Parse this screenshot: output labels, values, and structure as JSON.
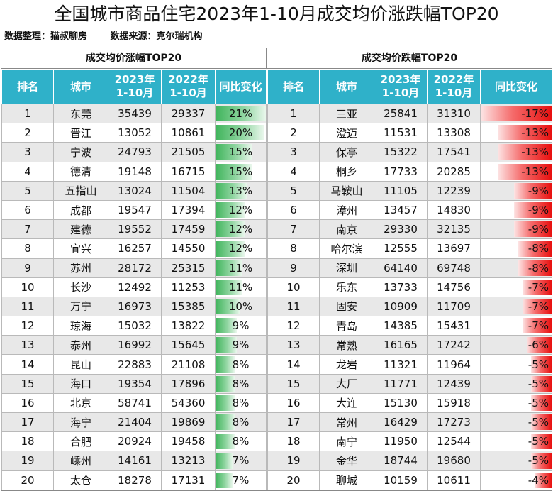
{
  "title": "全国城市商品住宅2023年1-10月成交均价涨跌幅TOP20",
  "subtitle": {
    "compiled_by": "数据整理：猫叔聊房",
    "source": "数据来源：克尔瑞机构"
  },
  "headers": {
    "rank": "排名",
    "city": "城市",
    "y2023": "2023年\n1-10月",
    "y2022": "2022年\n1-10月",
    "change": "同比变化"
  },
  "colors": {
    "header_bg": "#2fb1c9",
    "gain_bar": "#3fb45b",
    "loss_bar": "#e8100f"
  },
  "chart_data": [
    {
      "type": "table",
      "title": "成交均价涨幅TOP20",
      "max_abs_change": 21,
      "rows": [
        {
          "rank": "1",
          "city": "东莞",
          "price_2023": "35439",
          "price_2022": "29337",
          "change": "21%",
          "value": 21
        },
        {
          "rank": "2",
          "city": "晋江",
          "price_2023": "13052",
          "price_2022": "10861",
          "change": "20%",
          "value": 20
        },
        {
          "rank": "3",
          "city": "宁波",
          "price_2023": "24793",
          "price_2022": "21505",
          "change": "15%",
          "value": 15
        },
        {
          "rank": "4",
          "city": "德清",
          "price_2023": "19148",
          "price_2022": "16715",
          "change": "15%",
          "value": 15
        },
        {
          "rank": "5",
          "city": "五指山",
          "price_2023": "13024",
          "price_2022": "11504",
          "change": "13%",
          "value": 13
        },
        {
          "rank": "6",
          "city": "成都",
          "price_2023": "19547",
          "price_2022": "17394",
          "change": "12%",
          "value": 12
        },
        {
          "rank": "7",
          "city": "建德",
          "price_2023": "19552",
          "price_2022": "17459",
          "change": "12%",
          "value": 12
        },
        {
          "rank": "8",
          "city": "宜兴",
          "price_2023": "16257",
          "price_2022": "14550",
          "change": "12%",
          "value": 12
        },
        {
          "rank": "9",
          "city": "苏州",
          "price_2023": "28172",
          "price_2022": "25315",
          "change": "11%",
          "value": 11
        },
        {
          "rank": "10",
          "city": "长沙",
          "price_2023": "12492",
          "price_2022": "11253",
          "change": "11%",
          "value": 11
        },
        {
          "rank": "11",
          "city": "万宁",
          "price_2023": "16973",
          "price_2022": "15385",
          "change": "10%",
          "value": 10
        },
        {
          "rank": "12",
          "city": "琼海",
          "price_2023": "15032",
          "price_2022": "13822",
          "change": "9%",
          "value": 9
        },
        {
          "rank": "13",
          "city": "泰州",
          "price_2023": "16992",
          "price_2022": "15645",
          "change": "9%",
          "value": 9
        },
        {
          "rank": "14",
          "city": "昆山",
          "price_2023": "22883",
          "price_2022": "21108",
          "change": "8%",
          "value": 8
        },
        {
          "rank": "15",
          "city": "海口",
          "price_2023": "19354",
          "price_2022": "17896",
          "change": "8%",
          "value": 8
        },
        {
          "rank": "16",
          "city": "北京",
          "price_2023": "58741",
          "price_2022": "54360",
          "change": "8%",
          "value": 8
        },
        {
          "rank": "17",
          "city": "海宁",
          "price_2023": "21404",
          "price_2022": "19869",
          "change": "8%",
          "value": 8
        },
        {
          "rank": "18",
          "city": "合肥",
          "price_2023": "20924",
          "price_2022": "19458",
          "change": "8%",
          "value": 8
        },
        {
          "rank": "19",
          "city": "嵊州",
          "price_2023": "14161",
          "price_2022": "13213",
          "change": "7%",
          "value": 7
        },
        {
          "rank": "20",
          "city": "太仓",
          "price_2023": "18278",
          "price_2022": "17131",
          "change": "7%",
          "value": 7
        }
      ]
    },
    {
      "type": "table",
      "title": "成交均价跌幅TOP20",
      "max_abs_change": 17,
      "rows": [
        {
          "rank": "1",
          "city": "三亚",
          "price_2023": "25841",
          "price_2022": "31310",
          "change": "-17%",
          "value": -17
        },
        {
          "rank": "2",
          "city": "澄迈",
          "price_2023": "11531",
          "price_2022": "13308",
          "change": "-13%",
          "value": -13
        },
        {
          "rank": "3",
          "city": "保亭",
          "price_2023": "15322",
          "price_2022": "17541",
          "change": "-13%",
          "value": -13
        },
        {
          "rank": "4",
          "city": "桐乡",
          "price_2023": "17733",
          "price_2022": "20285",
          "change": "-13%",
          "value": -13
        },
        {
          "rank": "5",
          "city": "马鞍山",
          "price_2023": "11105",
          "price_2022": "12239",
          "change": "-9%",
          "value": -9
        },
        {
          "rank": "6",
          "city": "漳州",
          "price_2023": "13457",
          "price_2022": "14830",
          "change": "-9%",
          "value": -9
        },
        {
          "rank": "7",
          "city": "南京",
          "price_2023": "29330",
          "price_2022": "32135",
          "change": "-9%",
          "value": -9
        },
        {
          "rank": "8",
          "city": "哈尔滨",
          "price_2023": "12555",
          "price_2022": "13697",
          "change": "-8%",
          "value": -8
        },
        {
          "rank": "9",
          "city": "深圳",
          "price_2023": "64140",
          "price_2022": "69748",
          "change": "-8%",
          "value": -8
        },
        {
          "rank": "10",
          "city": "乐东",
          "price_2023": "13733",
          "price_2022": "14756",
          "change": "-7%",
          "value": -7
        },
        {
          "rank": "11",
          "city": "固安",
          "price_2023": "10909",
          "price_2022": "11709",
          "change": "-7%",
          "value": -7
        },
        {
          "rank": "12",
          "city": "青岛",
          "price_2023": "14385",
          "price_2022": "15431",
          "change": "-7%",
          "value": -7
        },
        {
          "rank": "13",
          "city": "常熟",
          "price_2023": "16165",
          "price_2022": "17242",
          "change": "-6%",
          "value": -6
        },
        {
          "rank": "14",
          "city": "龙岩",
          "price_2023": "11321",
          "price_2022": "11964",
          "change": "-5%",
          "value": -5
        },
        {
          "rank": "15",
          "city": "大厂",
          "price_2023": "11771",
          "price_2022": "12439",
          "change": "-5%",
          "value": -5
        },
        {
          "rank": "16",
          "city": "大连",
          "price_2023": "15130",
          "price_2022": "15918",
          "change": "-5%",
          "value": -5
        },
        {
          "rank": "17",
          "city": "常州",
          "price_2023": "16429",
          "price_2022": "17273",
          "change": "-5%",
          "value": -5
        },
        {
          "rank": "18",
          "city": "南宁",
          "price_2023": "11950",
          "price_2022": "12544",
          "change": "-5%",
          "value": -5
        },
        {
          "rank": "19",
          "city": "金华",
          "price_2023": "18744",
          "price_2022": "19680",
          "change": "-5%",
          "value": -5
        },
        {
          "rank": "20",
          "city": "聊城",
          "price_2023": "10159",
          "price_2022": "10611",
          "change": "-4%",
          "value": -4
        }
      ]
    }
  ]
}
